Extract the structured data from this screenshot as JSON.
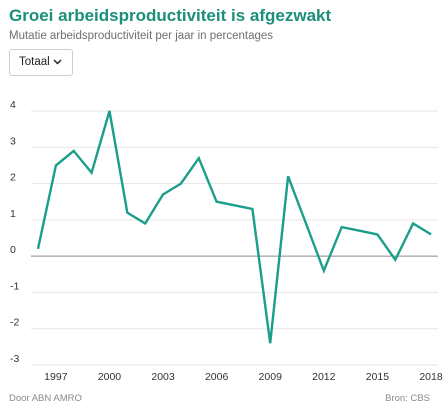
{
  "header": {
    "title": "Groei arbeidsproductiviteit is afgezwakt",
    "subtitle": "Mutatie arbeidsproductiviteit per jaar in percentages"
  },
  "filter": {
    "selected": "Totaal",
    "icon": "chevron-down-icon"
  },
  "footer": {
    "source_left": "Door ABN AMRO",
    "source_right": "Bron: CBS"
  },
  "colors": {
    "line": "#1b9e8a",
    "title": "#1a8f79",
    "grid": "#e6e6e6",
    "zero_line": "#8a8a8a"
  },
  "chart_data": {
    "type": "line",
    "title": "",
    "xlabel": "",
    "ylabel": "",
    "x": [
      1996,
      1997,
      1998,
      1999,
      2000,
      2001,
      2002,
      2003,
      2004,
      2005,
      2006,
      2007,
      2008,
      2009,
      2010,
      2011,
      2012,
      2013,
      2014,
      2015,
      2016,
      2017,
      2018
    ],
    "series": [
      {
        "values": [
          0.2,
          2.5,
          2.9,
          2.3,
          4.0,
          1.2,
          0.9,
          1.7,
          2.0,
          2.7,
          1.5,
          1.4,
          1.3,
          -2.4,
          2.2,
          0.9,
          -0.4,
          0.8,
          0.7,
          0.6,
          -0.1,
          0.9,
          0.6
        ]
      }
    ],
    "ylim": [
      -3,
      4
    ],
    "xlim": [
      1996,
      2018
    ],
    "yticks": [
      4,
      3,
      2,
      1,
      0,
      -1,
      -2,
      -3
    ],
    "yticklabels": [
      "4",
      "3",
      "2",
      "1",
      "0",
      "-1",
      "-2",
      "-3"
    ],
    "xticks": [
      1997,
      2000,
      2003,
      2006,
      2009,
      2012,
      2015,
      2018
    ],
    "xticklabels": [
      "1997",
      "2000",
      "2003",
      "2006",
      "2009",
      "2012",
      "2015",
      "2018"
    ],
    "grid": "horizontal"
  }
}
